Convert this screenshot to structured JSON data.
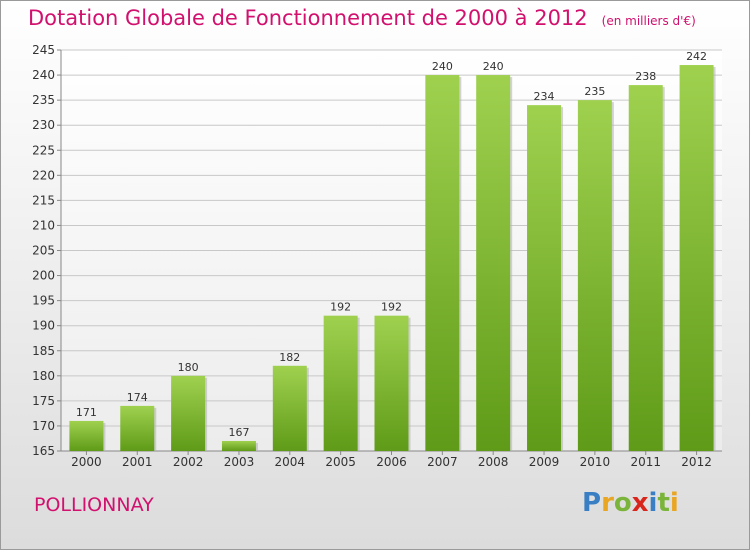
{
  "header": {
    "title": "Dotation Globale de Fonctionnement de 2000 à 2012",
    "unit": "(en milliers d'€)"
  },
  "footer": {
    "commune": "POLLIONNAY",
    "logo_letters": [
      {
        "ch": "P",
        "color": "#3a7fc4"
      },
      {
        "ch": "r",
        "color": "#e8a623"
      },
      {
        "ch": "o",
        "color": "#7bb43a"
      },
      {
        "ch": "x",
        "color": "#d9261c"
      },
      {
        "ch": "i",
        "color": "#3a7fc4"
      },
      {
        "ch": "t",
        "color": "#7bb43a"
      },
      {
        "ch": "i",
        "color": "#e8a623"
      }
    ]
  },
  "chart_data": {
    "type": "bar",
    "title": "Dotation Globale de Fonctionnement de 2000 à 2012",
    "subtitle": "(en milliers d'€)",
    "categories": [
      "2000",
      "2001",
      "2002",
      "2003",
      "2004",
      "2005",
      "2006",
      "2007",
      "2008",
      "2009",
      "2010",
      "2011",
      "2012"
    ],
    "values": [
      171,
      174,
      180,
      167,
      182,
      192,
      192,
      240,
      240,
      234,
      235,
      238,
      242
    ],
    "ylim": [
      165,
      245
    ],
    "yticks": [
      165,
      170,
      175,
      180,
      185,
      190,
      195,
      200,
      205,
      210,
      215,
      220,
      225,
      230,
      235,
      240,
      245
    ],
    "grid": true,
    "bar_color_top": "#9fd14f",
    "bar_color_bottom": "#5f9b18"
  }
}
